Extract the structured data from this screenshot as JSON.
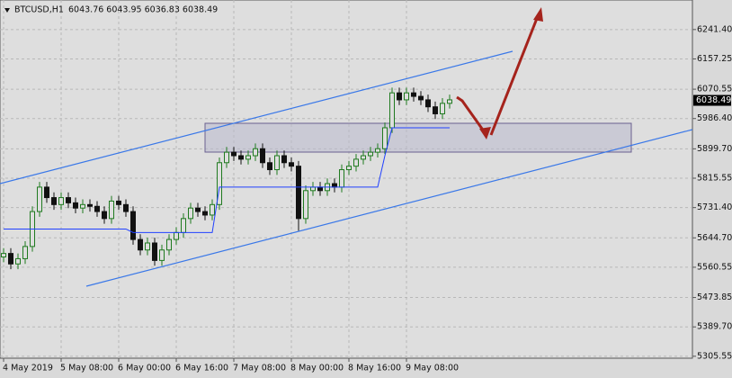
{
  "chart_data": {
    "type": "candlestick",
    "title": "BTCUSD,H1",
    "subtitle": "6043.76 6043.95 6036.83 6038.49",
    "current_price": {
      "value": 6038.49,
      "label": "6038.49"
    },
    "open": [
      5590,
      5600,
      5570,
      5585,
      5620,
      5720,
      5790,
      5760,
      5740,
      5760,
      5745,
      5730,
      5740,
      5735,
      5720,
      5700,
      5750,
      5740,
      5720,
      5640,
      5610,
      5630,
      5580,
      5610,
      5640,
      5660,
      5700,
      5730,
      5720,
      5710,
      5740,
      5860,
      5890,
      5880,
      5870,
      5880,
      5900,
      5860,
      5840,
      5880,
      5860,
      5850,
      5700,
      5780,
      5790,
      5780,
      5800,
      5790,
      5840,
      5850,
      5870,
      5880,
      5890,
      5900,
      5960,
      6060,
      6040,
      6060,
      6050,
      6040,
      6020,
      6000,
      6030
    ],
    "high": [
      5615,
      5615,
      5600,
      5635,
      5735,
      5805,
      5805,
      5775,
      5775,
      5775,
      5760,
      5755,
      5755,
      5750,
      5735,
      5765,
      5765,
      5755,
      5735,
      5655,
      5645,
      5645,
      5625,
      5655,
      5675,
      5715,
      5745,
      5745,
      5735,
      5755,
      5875,
      5905,
      5905,
      5895,
      5895,
      5915,
      5915,
      5875,
      5895,
      5895,
      5875,
      5865,
      5795,
      5805,
      5805,
      5815,
      5815,
      5855,
      5865,
      5885,
      5895,
      5905,
      5915,
      5975,
      6075,
      6075,
      6075,
      6075,
      6065,
      6055,
      6035,
      6045,
      6055
    ],
    "low": [
      5575,
      5555,
      5555,
      5570,
      5605,
      5705,
      5745,
      5725,
      5725,
      5730,
      5715,
      5715,
      5720,
      5705,
      5685,
      5685,
      5725,
      5705,
      5625,
      5595,
      5595,
      5565,
      5565,
      5595,
      5625,
      5645,
      5685,
      5705,
      5695,
      5695,
      5725,
      5845,
      5865,
      5855,
      5855,
      5865,
      5845,
      5825,
      5825,
      5845,
      5835,
      5665,
      5685,
      5765,
      5765,
      5765,
      5775,
      5775,
      5825,
      5835,
      5855,
      5865,
      5875,
      5885,
      5945,
      6025,
      6025,
      6035,
      6025,
      6005,
      5985,
      5985,
      6015
    ],
    "close": [
      5600,
      5570,
      5585,
      5620,
      5720,
      5790,
      5760,
      5740,
      5760,
      5745,
      5730,
      5740,
      5735,
      5720,
      5700,
      5750,
      5740,
      5720,
      5640,
      5610,
      5630,
      5580,
      5610,
      5640,
      5660,
      5700,
      5730,
      5720,
      5710,
      5740,
      5860,
      5890,
      5880,
      5870,
      5880,
      5900,
      5860,
      5840,
      5880,
      5860,
      5850,
      5700,
      5780,
      5790,
      5780,
      5800,
      5790,
      5840,
      5850,
      5870,
      5880,
      5890,
      5900,
      5960,
      6060,
      6040,
      6060,
      6050,
      6040,
      6020,
      6000,
      6030,
      6040
    ],
    "up_color": "#1f7a1f",
    "down_color": "#111111",
    "line": {
      "color": "#2040ff",
      "values": [
        5670,
        5670,
        5670,
        5670,
        5670,
        5670,
        5670,
        5670,
        5670,
        5670,
        5670,
        5670,
        5670,
        5670,
        5670,
        5670,
        5670,
        5670,
        5660,
        5660,
        5660,
        5660,
        5660,
        5660,
        5660,
        5660,
        5660,
        5660,
        5660,
        5660,
        5790,
        5790,
        5790,
        5790,
        5790,
        5790,
        5790,
        5790,
        5790,
        5790,
        5790,
        5790,
        5790,
        5790,
        5790,
        5790,
        5790,
        5790,
        5790,
        5790,
        5790,
        5790,
        5790,
        5880,
        5960,
        5960,
        5960,
        5960,
        5960,
        5960,
        5960,
        5960,
        5960
      ]
    },
    "ylim": [
      5300,
      6326
    ],
    "yticks": [
      {
        "value": 6241.4,
        "label": "6241.40"
      },
      {
        "value": 6157.25,
        "label": "6157.25"
      },
      {
        "value": 6070.55,
        "label": "6070.55"
      },
      {
        "value": 5986.4,
        "label": "5986.40"
      },
      {
        "value": 5899.7,
        "label": "5899.70"
      },
      {
        "value": 5815.55,
        "label": "5815.55"
      },
      {
        "value": 5731.4,
        "label": "5731.40"
      },
      {
        "value": 5644.7,
        "label": "5644.70"
      },
      {
        "value": 5560.55,
        "label": "5560.55"
      },
      {
        "value": 5473.85,
        "label": "5473.85"
      },
      {
        "value": 5389.7,
        "label": "5389.70"
      },
      {
        "value": 5305.55,
        "label": "5305.55"
      }
    ],
    "xticks": [
      {
        "value": 0,
        "label": "4 May 2019"
      },
      {
        "value": 8,
        "label": "5 May 08:00"
      },
      {
        "value": 16,
        "label": "6 May 00:00"
      },
      {
        "value": 24,
        "label": "6 May 16:00"
      },
      {
        "value": 32,
        "label": "7 May 08:00"
      },
      {
        "value": 40,
        "label": "8 May 00:00"
      },
      {
        "value": 48,
        "label": "8 May 16:00"
      },
      {
        "value": 56,
        "label": "9 May 08:00"
      }
    ],
    "grid": true
  }
}
